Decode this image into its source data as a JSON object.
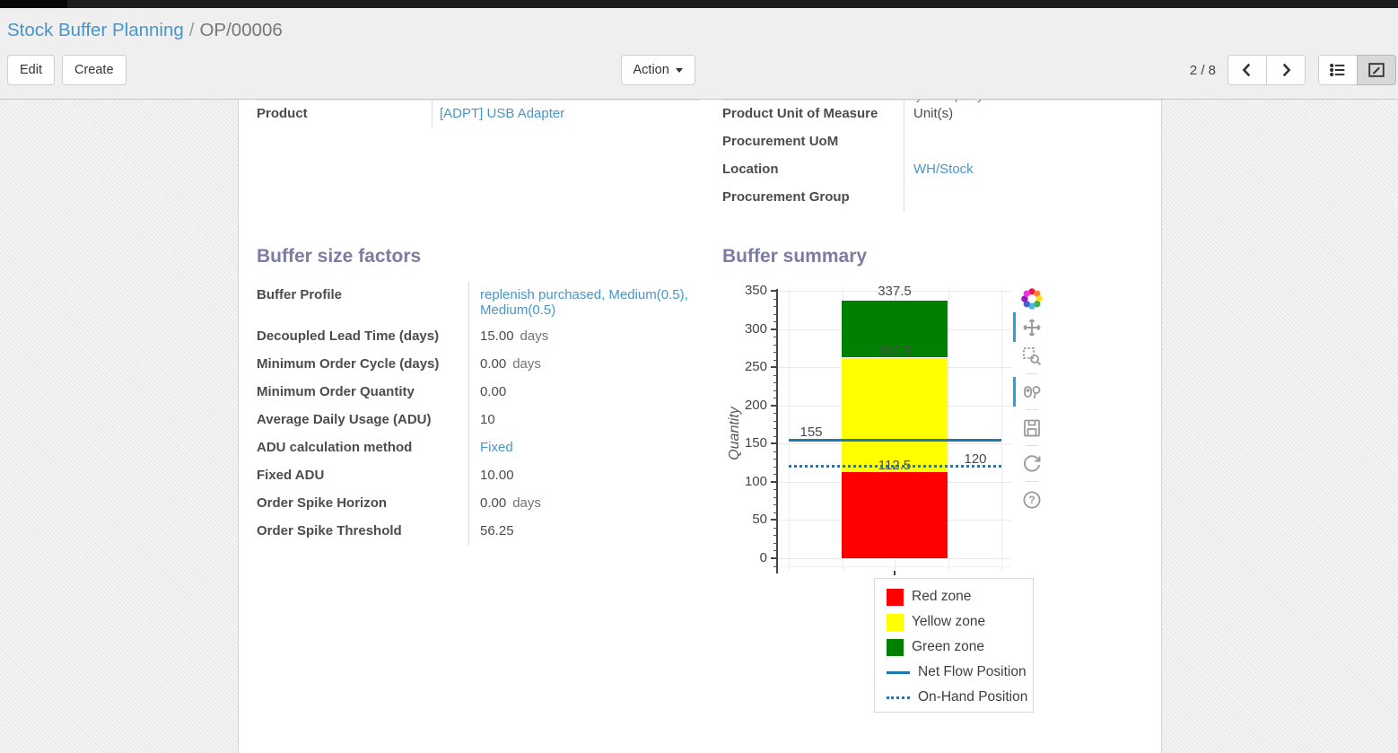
{
  "breadcrumb": {
    "parent": "Stock Buffer Planning",
    "separator": "/",
    "current": "OP/00006"
  },
  "control_panel": {
    "edit_label": "Edit",
    "create_label": "Create",
    "action_label": "Action",
    "pager": {
      "text": "2 / 8"
    },
    "view_switcher": [
      "list",
      "form"
    ],
    "active_view": "form"
  },
  "clipped_value": "My Company",
  "fields_top_left": [
    {
      "label": "Product",
      "value": "[ADPT] USB Adapter"
    }
  ],
  "fields_top_right": [
    {
      "label": "Product Unit of Measure",
      "value": "Unit(s)"
    },
    {
      "label": "Procurement UoM",
      "value": ""
    },
    {
      "label": "Location",
      "value": "WH/Stock"
    },
    {
      "label": "Procurement Group",
      "value": ""
    }
  ],
  "buffer_factors": {
    "title": "Buffer size factors",
    "rows": [
      {
        "label": "Buffer Profile",
        "value": "replenish purchased, Medium(0.5), Medium(0.5)",
        "unit": ""
      },
      {
        "label": "Decoupled Lead Time (days)",
        "value": "15.00",
        "unit": "days"
      },
      {
        "label": "Minimum Order Cycle (days)",
        "value": "0.00",
        "unit": "days"
      },
      {
        "label": "Minimum Order Quantity",
        "value": "0.00",
        "unit": ""
      },
      {
        "label": "Average Daily Usage (ADU)",
        "value": "10",
        "unit": ""
      },
      {
        "label": "ADU calculation method",
        "value": "Fixed",
        "unit": ""
      },
      {
        "label": "Fixed ADU",
        "value": "10.00",
        "unit": ""
      },
      {
        "label": "Order Spike Horizon",
        "value": "0.00",
        "unit": "days"
      },
      {
        "label": "Order Spike Threshold",
        "value": "56.25",
        "unit": ""
      }
    ]
  },
  "buffer_summary": {
    "title": "Buffer summary",
    "modebar_icons": [
      "plotly-logo",
      "pan",
      "box-zoom",
      "zoom-in-out",
      "save",
      "reset",
      "help"
    ],
    "chart_data": {
      "type": "stacked-bar",
      "title": "",
      "xlabel": "",
      "ylabel": "Quantity",
      "ylim": [
        0,
        350
      ],
      "ytick_step": 50,
      "grid": true,
      "categories": [
        ""
      ],
      "zones": [
        {
          "name": "Red zone",
          "from": 0,
          "to": 112.5,
          "color": "#ff0000"
        },
        {
          "name": "Yellow zone",
          "from": 112.5,
          "to": 262.5,
          "color": "#ffff00"
        },
        {
          "name": "Green zone",
          "from": 262.5,
          "to": 337.5,
          "color": "#008000"
        }
      ],
      "bar_labels": [
        337.5,
        262.5,
        112.5
      ],
      "lines": [
        {
          "name": "Net Flow Position",
          "value": 155,
          "style": "solid",
          "color": "#1f77b4",
          "label_side": "left"
        },
        {
          "name": "On-Hand Position",
          "value": 120,
          "style": "dotted",
          "color": "#1f77b4",
          "label_side": "right"
        }
      ],
      "legend_position": "bottom-right",
      "legend_items": [
        {
          "label": "Red zone",
          "swatch": "square",
          "color": "#ff0000"
        },
        {
          "label": "Yellow zone",
          "swatch": "square",
          "color": "#ffff00"
        },
        {
          "label": "Green zone",
          "swatch": "square",
          "color": "#008000"
        },
        {
          "label": "Net Flow Position",
          "swatch": "line",
          "color": "#1f77b4"
        },
        {
          "label": "On-Hand Position",
          "swatch": "dotted",
          "color": "#1f77b4"
        }
      ]
    }
  }
}
